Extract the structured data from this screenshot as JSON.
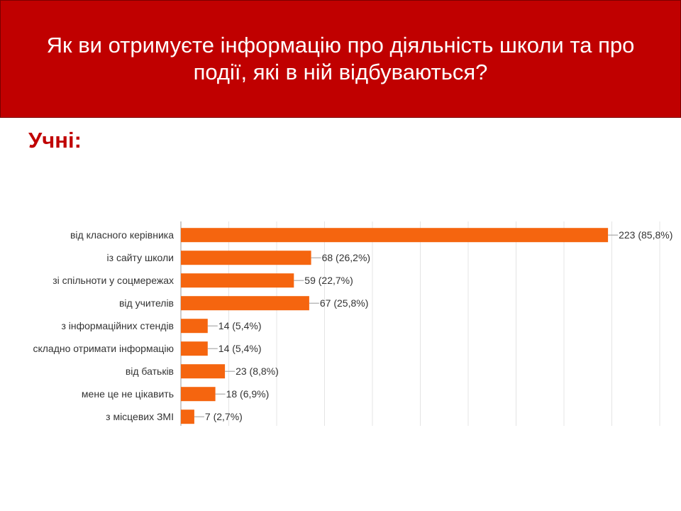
{
  "header": {
    "title": "Як ви отримуєте інформацію про діяльність школи та про події, які в ній відбуваються?"
  },
  "subtitle": "Учні:",
  "chart_data": {
    "type": "bar",
    "orientation": "horizontal",
    "categories": [
      "від класного керівника",
      "із сайту школи",
      "зі спільноти у соцмережах",
      "від учителів",
      "з інформаційних стендів",
      "складно отримати інформацію",
      "від батьків",
      "мене це не цікавить",
      "з місцевих ЗМІ"
    ],
    "values": [
      223,
      68,
      59,
      67,
      14,
      14,
      23,
      18,
      7
    ],
    "value_labels": [
      "223 (85,8%)",
      "68 (26,2%)",
      "59 (22,7%)",
      "67 (25,8%)",
      "14 (5,4%)",
      "14 (5,4%)",
      "23 (8,8%)",
      "18 (6,9%)",
      "7 (2,7%)"
    ],
    "color": "#f5650f",
    "xlim": [
      0,
      250
    ],
    "xticks": [
      0,
      25,
      50,
      75,
      100,
      125,
      150,
      175,
      200,
      225,
      250
    ],
    "grid": true
  }
}
